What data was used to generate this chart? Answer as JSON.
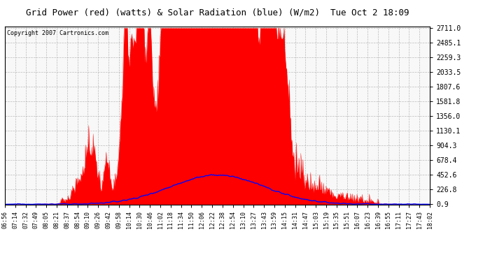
{
  "title": "Grid Power (red) (watts) & Solar Radiation (blue) (W/m2)  Tue Oct 2 18:09",
  "copyright": "Copyright 2007 Cartronics.com",
  "yticks": [
    0.9,
    226.8,
    452.6,
    678.4,
    904.3,
    1130.1,
    1356.0,
    1581.8,
    1807.6,
    2033.5,
    2259.3,
    2485.1,
    2711.0
  ],
  "ymin": 0.9,
  "ymax": 2711.0,
  "xtick_labels": [
    "06:56",
    "07:14",
    "07:32",
    "07:49",
    "08:05",
    "08:21",
    "08:37",
    "08:54",
    "09:10",
    "09:26",
    "09:42",
    "09:58",
    "10:14",
    "10:30",
    "10:46",
    "11:02",
    "11:18",
    "11:34",
    "11:50",
    "12:06",
    "12:22",
    "12:38",
    "12:54",
    "13:10",
    "13:27",
    "13:43",
    "13:59",
    "14:15",
    "14:31",
    "14:47",
    "15:03",
    "15:19",
    "15:35",
    "15:51",
    "16:07",
    "16:23",
    "16:39",
    "16:55",
    "17:11",
    "17:27",
    "17:43",
    "18:02"
  ],
  "red_color": "#FF0000",
  "blue_color": "#0000FF",
  "bg_color": "#FFFFFF",
  "grid_color": "#AAAAAA",
  "title_color": "#000000",
  "copyright_color": "#000000",
  "face_color": "#F8F8F8"
}
